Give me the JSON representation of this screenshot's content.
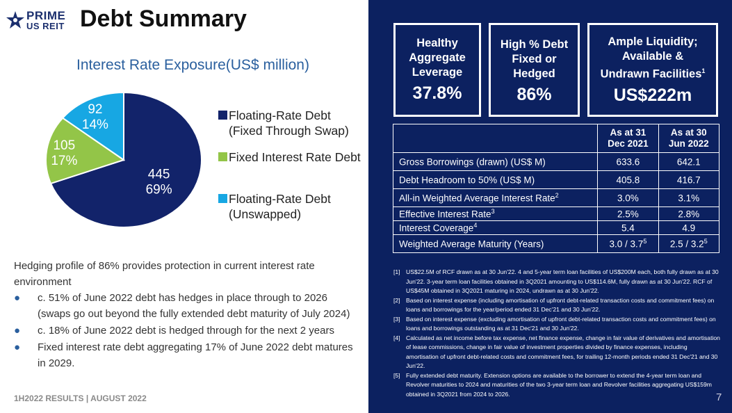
{
  "logo": {
    "line1": "PRIME",
    "line2": "US REIT"
  },
  "title": "Debt Summary",
  "chart_data": {
    "type": "pie",
    "title": "Interest Rate Exposure(US$ million)",
    "slices": [
      {
        "label": "Floating-Rate Debt (Fixed Through Swap)",
        "value": 445,
        "percent": "69%",
        "color": "#12236a"
      },
      {
        "label": "Fixed Interest Rate Debt",
        "value": 105,
        "percent": "17%",
        "color": "#93c548"
      },
      {
        "label": "Floating-Rate Debt (Unswapped)",
        "value": 92,
        "percent": "14%",
        "color": "#17a7e3"
      }
    ],
    "legend": [
      "Floating-Rate Debt",
      "(Fixed Through Swap)",
      "Fixed Interest Rate Debt",
      "Floating-Rate Debt",
      "(Unswapped)"
    ],
    "legend_placement": "right"
  },
  "hedging": {
    "intro": "Hedging profile of 86% provides protection in current interest rate environment",
    "bullets": [
      {
        "line1": "c. 51% of June 2022 debt has hedges in place through to 2026",
        "line2": "(swaps go out beyond the fully extended debt maturity of July 2024)"
      },
      {
        "line1": "c. 18% of June 2022 debt  is hedged through for the next 2 years",
        "line2": ""
      },
      {
        "line1": "Fixed interest rate debt aggregating 17% of June 2022 debt matures",
        "line2": "in 2029."
      }
    ]
  },
  "footer": "1H2022 RESULTS |  AUGUST 2022",
  "page_number": "7",
  "boxes": [
    {
      "l1": "Healthy",
      "l2": "Aggregate",
      "l3": "Leverage",
      "value": "37.8%"
    },
    {
      "l1": "High % Debt",
      "l2": "Fixed or",
      "l3": "Hedged",
      "value": "86%"
    },
    {
      "l1": "Ample Liquidity;",
      "l2": "Available &",
      "l3": "Undrawn Facilities",
      "sup": "1",
      "value": "US$222m"
    }
  ],
  "table": {
    "headers": [
      "As at 31 Dec 2021",
      "As at 30 Jun 2022"
    ],
    "rows": [
      {
        "label": "Gross Borrowings (drawn) (US$ M)",
        "sup": "",
        "a": "633.6",
        "a_sup": "",
        "b": "642.1",
        "b_sup": ""
      },
      {
        "label": "Debt Headroom to 50% (US$ M)",
        "sup": "",
        "a": "405.8",
        "a_sup": "",
        "b": "416.7",
        "b_sup": ""
      },
      {
        "label": "All-in Weighted Average Interest Rate",
        "sup": "2",
        "a": "3.0%",
        "a_sup": "",
        "b": "3.1%",
        "b_sup": ""
      },
      {
        "label": "Effective Interest Rate",
        "sup": "3",
        "a": "2.5%",
        "a_sup": "",
        "b": "2.8%",
        "b_sup": ""
      },
      {
        "label": "Interest Coverage",
        "sup": "4",
        "a": "5.4",
        "a_sup": "",
        "b": "4.9",
        "b_sup": ""
      },
      {
        "label": "Weighted Average Maturity (Years)",
        "sup": "",
        "a": "3.0 / 3.7",
        "a_sup": "5",
        "b": "2.5 / 3.2",
        "b_sup": "5"
      }
    ]
  },
  "notes": [
    {
      "k": "[1]",
      "text": "US$22.5M of RCF drawn as at 30 Jun'22. 4 and 5-year term loan facilities of US$200M each, both fully drawn as at 30 Jun'22. 3-year term loan facilities obtained in 3Q2021 amounting to US$114.6M, fully drawn as at 30 Jun'22. RCF of US$45M obtained in 3Q2021 maturing in 2024, undrawn as at 30 Jun'22."
    },
    {
      "k": "[2]",
      "text": "Based on interest expense (including  amortisation of upfront debt-related transaction costs and commitment fees) on loans and borrowings for the year/period ended 31 Dec'21 and 30 Jun'22."
    },
    {
      "k": "[3]",
      "text": "Based on interest expense (excluding  amortisation of upfront debt-related transaction costs and commitment fees) on loans and borrowings outstanding as at 31 Dec'21 and 30 Jun'22."
    },
    {
      "k": "[4]",
      "text": "Calculated as net income before tax expense, net finance expense, change in fair value of derivatives and amortisation of lease commissions, change in fair value of investment properties divided by finance expenses, including amortisation of upfront debt-related costs and commitment fees, for trailing 12-month periods ended 31 Dec'21 and 30 Jun'22."
    },
    {
      "k": "[5]",
      "text": "Fully extended debt maturity. Extension options are available to the borrower to extend the 4-year term loan and Revolver maturities to 2024 and maturities of the two 3-year term loan and Revolver facilities aggregating US$159m obtained in 3Q2021 from 2024 to 2026."
    }
  ]
}
